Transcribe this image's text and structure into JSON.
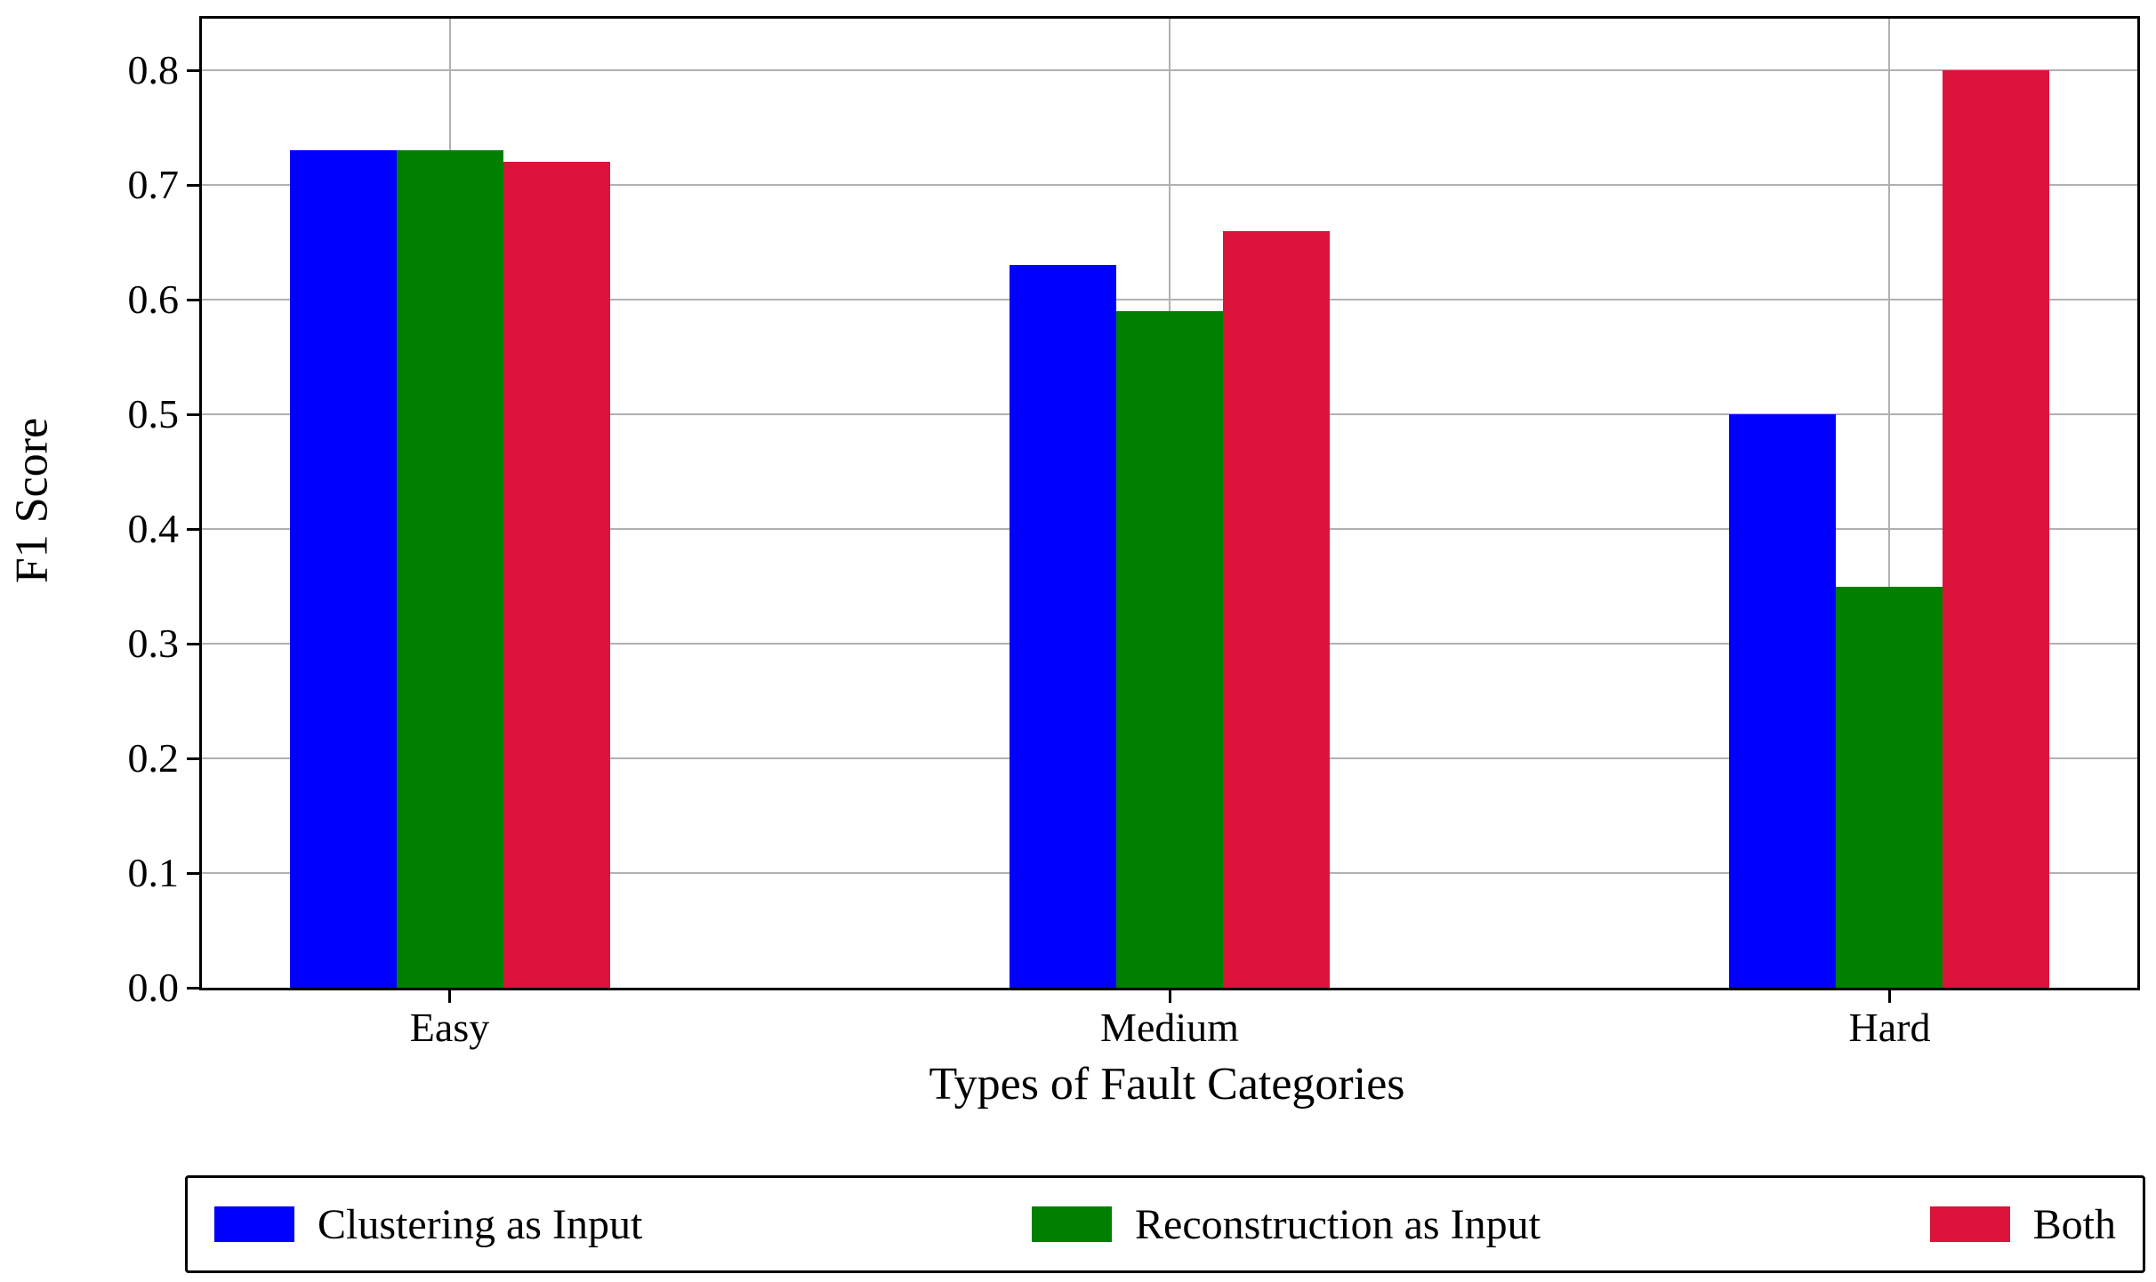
{
  "chart_data": {
    "type": "bar",
    "title": "",
    "xlabel": "Types of Fault Categories",
    "ylabel": "F1 Score",
    "categories": [
      "Easy",
      "Medium",
      "Hard"
    ],
    "series": [
      {
        "name": "Clustering as Input",
        "color": "#0000ff",
        "values": [
          0.73,
          0.63,
          0.5
        ]
      },
      {
        "name": "Reconstruction as Input",
        "color": "#008000",
        "values": [
          0.73,
          0.59,
          0.35
        ]
      },
      {
        "name": "Both",
        "color": "#dc143c",
        "values": [
          0.72,
          0.66,
          0.8
        ]
      }
    ],
    "ylim": [
      0,
      0.845
    ],
    "yticks": [
      0.0,
      0.1,
      0.2,
      0.3,
      0.4,
      0.5,
      0.6,
      0.7,
      0.8
    ],
    "ytick_labels": [
      "0.0",
      "0.1",
      "0.2",
      "0.3",
      "0.4",
      "0.5",
      "0.6",
      "0.7",
      "0.8"
    ],
    "grid": true,
    "grid_color": "#b0b0b0",
    "legend_position": "bottom"
  }
}
